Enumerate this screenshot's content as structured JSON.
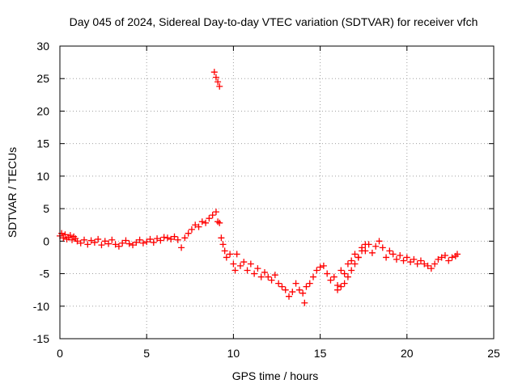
{
  "chart_data": {
    "type": "scatter",
    "title": "Day 045 of 2024, Sidereal Day-to-day VTEC variation (SDTVAR) for receiver vfch",
    "xlabel": "GPS time / hours",
    "ylabel": "SDTVAR / TECUs",
    "xlim": [
      0,
      25
    ],
    "ylim": [
      -15,
      30
    ],
    "xticks": [
      0,
      5,
      10,
      15,
      20,
      25
    ],
    "yticks": [
      -15,
      -10,
      -5,
      0,
      5,
      10,
      15,
      20,
      25,
      30
    ],
    "grid": true,
    "marker": "+",
    "color": "#ff0000",
    "series": [
      {
        "name": "SDTVAR",
        "x": [
          0.0,
          0.1,
          0.2,
          0.3,
          0.4,
          0.5,
          0.6,
          0.7,
          0.8,
          0.9,
          1.0,
          1.2,
          1.4,
          1.6,
          1.8,
          2.0,
          2.2,
          2.4,
          2.6,
          2.8,
          3.0,
          3.2,
          3.4,
          3.6,
          3.8,
          4.0,
          4.2,
          4.4,
          4.6,
          4.8,
          5.0,
          5.2,
          5.4,
          5.6,
          5.8,
          6.0,
          6.2,
          6.4,
          6.6,
          6.8,
          7.0,
          7.2,
          7.4,
          7.6,
          7.8,
          8.0,
          8.2,
          8.4,
          8.6,
          8.8,
          9.0,
          9.1,
          9.2,
          9.3,
          9.4,
          9.5,
          9.6,
          9.8,
          10.0,
          10.1,
          10.2,
          10.4,
          10.6,
          10.8,
          11.0,
          11.2,
          11.4,
          11.6,
          11.8,
          12.0,
          12.2,
          12.4,
          12.6,
          12.8,
          13.0,
          13.2,
          13.4,
          13.6,
          13.8,
          14.0,
          14.1,
          14.2,
          14.4,
          14.6,
          14.8,
          15.0,
          15.2,
          15.4,
          15.6,
          15.8,
          16.0,
          16.2,
          16.4,
          16.6,
          16.8,
          17.0,
          17.2,
          17.4,
          17.6,
          17.8,
          18.0,
          18.2,
          18.4,
          18.6,
          18.8,
          19.0,
          19.2,
          19.4,
          19.6,
          19.8,
          20.0,
          20.2,
          20.4,
          20.6,
          20.8,
          21.0,
          21.2,
          21.4,
          21.6,
          21.8,
          22.0,
          22.2,
          22.4,
          22.6,
          22.8,
          22.9,
          8.9,
          9.0,
          9.1,
          9.2,
          16.0,
          16.2,
          16.4,
          16.6,
          16.8,
          17.0,
          17.2,
          17.4,
          17.6
        ],
        "y": [
          0.8,
          1.2,
          0.5,
          1.0,
          0.3,
          0.6,
          0.9,
          0.2,
          0.7,
          0.4,
          0.0,
          -0.3,
          0.2,
          -0.5,
          0.1,
          -0.2,
          0.3,
          -0.6,
          0.0,
          -0.4,
          0.2,
          -0.5,
          -0.8,
          -0.3,
          0.1,
          -0.4,
          -0.6,
          -0.2,
          0.2,
          -0.3,
          -0.1,
          0.3,
          -0.2,
          0.4,
          0.1,
          0.6,
          0.5,
          0.3,
          0.7,
          0.2,
          -1.0,
          0.5,
          1.2,
          1.8,
          2.5,
          2.2,
          3.0,
          2.8,
          3.5,
          4.0,
          4.5,
          3.0,
          2.8,
          0.5,
          -0.5,
          -1.5,
          -2.5,
          -2.0,
          -3.5,
          -4.5,
          -2.0,
          -3.8,
          -3.2,
          -4.5,
          -3.5,
          -5.0,
          -4.2,
          -5.5,
          -4.8,
          -5.5,
          -6.0,
          -5.2,
          -6.5,
          -7.0,
          -7.5,
          -8.5,
          -7.8,
          -6.5,
          -7.5,
          -8.0,
          -9.5,
          -7.0,
          -6.5,
          -5.5,
          -4.5,
          -4.0,
          -3.8,
          -5.0,
          -6.0,
          -5.5,
          -6.8,
          -4.5,
          -5.0,
          -3.5,
          -3.0,
          -2.0,
          -2.5,
          -1.0,
          -1.5,
          -0.5,
          -1.8,
          -0.8,
          0.0,
          -1.0,
          -2.5,
          -1.5,
          -2.0,
          -2.8,
          -2.2,
          -3.0,
          -2.5,
          -3.2,
          -2.8,
          -3.5,
          -3.0,
          -3.5,
          -3.8,
          -4.2,
          -3.5,
          -2.8,
          -2.5,
          -2.2,
          -3.0,
          -2.5,
          -2.3,
          -2.0,
          26.0,
          25.2,
          24.5,
          23.8,
          -7.5,
          -7.0,
          -6.5,
          -5.5,
          -4.5,
          -3.5,
          -2.5,
          -1.5,
          -0.5
        ]
      }
    ]
  }
}
